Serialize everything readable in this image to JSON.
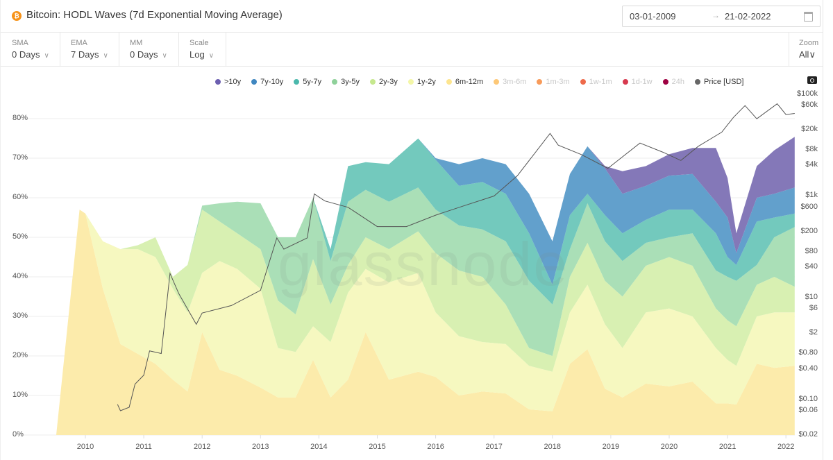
{
  "header": {
    "title": "Bitcoin: HODL Waves (7d Exponential Moving Average)",
    "coin_icon": "bitcoin-icon",
    "date_from": "03-01-2009",
    "date_arrow": "→",
    "date_to": "21-02-2022"
  },
  "controls": [
    {
      "label": "SMA",
      "value": "0 Days"
    },
    {
      "label": "EMA",
      "value": "7 Days"
    },
    {
      "label": "MM",
      "value": "0 Days"
    },
    {
      "label": "Scale",
      "value": "Log"
    }
  ],
  "zoom": {
    "label": "Zoom",
    "value": "All"
  },
  "watermark": "glassnode",
  "legend": [
    {
      "name": ">10y",
      "color": "#6c5fb0",
      "active": true
    },
    {
      "name": "7y-10y",
      "color": "#3f87c0",
      "active": true
    },
    {
      "name": "5y-7y",
      "color": "#4bb8ac",
      "active": true
    },
    {
      "name": "3y-5y",
      "color": "#8fd19a",
      "active": true
    },
    {
      "name": "2y-3y",
      "color": "#c6e88e",
      "active": true
    },
    {
      "name": "1y-2y",
      "color": "#f4f7a8",
      "active": true
    },
    {
      "name": "6m-12m",
      "color": "#fde58f",
      "active": true
    },
    {
      "name": "3m-6m",
      "color": "#fdc877",
      "active": false
    },
    {
      "name": "1m-3m",
      "color": "#f89b5a",
      "active": false
    },
    {
      "name": "1w-1m",
      "color": "#ee6a4a",
      "active": false
    },
    {
      "name": "1d-1w",
      "color": "#d7394e",
      "active": false
    },
    {
      "name": "24h",
      "color": "#9e0142",
      "active": false
    },
    {
      "name": "Price [USD]",
      "color": "#666666",
      "active": true
    }
  ],
  "chart_data": {
    "type": "area",
    "stacked": true,
    "x_unit": "year",
    "x": [
      2009.5,
      2009.9,
      2010.0,
      2010.3,
      2010.6,
      2010.9,
      2011.2,
      2011.5,
      2011.75,
      2012.0,
      2012.3,
      2012.6,
      2013.0,
      2013.3,
      2013.6,
      2013.9,
      2014.2,
      2014.5,
      2014.8,
      2015.2,
      2015.7,
      2016.0,
      2016.4,
      2016.8,
      2017.2,
      2017.6,
      2018.0,
      2018.3,
      2018.6,
      2018.9,
      2019.2,
      2019.6,
      2020.0,
      2020.4,
      2020.8,
      2021.0,
      2021.15,
      2021.5,
      2021.8,
      2022.15
    ],
    "series_order_bottom_to_top": [
      "6m-12m",
      "1y-2y",
      "2y-3y",
      "3y-5y",
      "5y-7y",
      "7y-10y",
      ">10y"
    ],
    "cumulative_percent": [
      [
        0
      ],
      [
        57
      ],
      [
        56
      ],
      [
        37,
        49
      ],
      [
        23,
        47
      ],
      [
        20.5,
        47,
        48
      ],
      [
        18,
        45,
        50
      ],
      [
        14,
        37,
        40
      ],
      [
        11,
        31,
        43
      ],
      [
        26,
        41,
        57,
        58
      ],
      [
        16.5,
        44,
        54,
        58.6
      ],
      [
        15,
        42,
        51,
        59
      ],
      [
        12,
        37,
        47,
        58.6
      ],
      [
        9.5,
        22,
        34,
        50
      ],
      [
        9.5,
        21,
        30.5,
        50
      ],
      [
        19,
        27.5,
        44.5,
        60
      ],
      [
        9.5,
        23.5,
        33,
        44,
        47
      ],
      [
        14,
        36,
        43,
        59,
        68
      ],
      [
        26,
        42,
        50,
        62,
        69
      ],
      [
        14,
        38.6,
        47,
        59,
        68.5
      ],
      [
        16,
        41,
        51.5,
        62.6,
        75
      ],
      [
        14.7,
        31,
        46,
        57,
        69.6,
        70
      ],
      [
        10,
        25,
        41.6,
        53,
        63,
        68.5
      ],
      [
        11,
        23.5,
        40,
        52,
        64,
        70
      ],
      [
        10.5,
        23,
        33,
        49,
        61,
        68.5
      ],
      [
        6.5,
        17.5,
        22,
        39,
        51,
        61
      ],
      [
        6,
        16,
        20,
        33,
        38,
        49
      ],
      [
        18,
        31,
        40,
        47,
        55.6,
        66
      ],
      [
        21.7,
        38,
        48.6,
        58.6,
        61,
        73
      ],
      [
        11.7,
        28,
        39,
        49,
        55.6,
        67.4,
        68
      ],
      [
        9.5,
        22,
        35,
        44,
        51,
        61,
        66.7
      ],
      [
        13,
        31,
        42.8,
        48.6,
        54.4,
        63,
        68
      ],
      [
        12.3,
        32,
        45,
        50,
        57,
        65.6,
        71
      ],
      [
        13.5,
        30,
        42.8,
        51,
        57,
        66,
        72.6
      ],
      [
        8,
        22,
        32,
        41.6,
        51,
        59,
        72.6
      ],
      [
        8,
        19,
        29,
        40,
        45,
        55,
        65
      ],
      [
        7.7,
        17.5,
        27.5,
        39,
        43,
        46,
        51
      ],
      [
        18,
        30,
        38,
        43,
        54,
        60,
        68
      ],
      [
        17,
        31,
        40,
        50,
        55,
        61,
        72
      ],
      [
        17.5,
        31,
        37.5,
        52.6,
        56,
        62.6,
        75.4
      ]
    ],
    "price_usd": [
      [
        2010.55,
        0.08
      ],
      [
        2010.6,
        0.06
      ],
      [
        2010.75,
        0.07
      ],
      [
        2010.85,
        0.2
      ],
      [
        2011.0,
        0.3
      ],
      [
        2011.1,
        0.9
      ],
      [
        2011.3,
        0.8
      ],
      [
        2011.45,
        30
      ],
      [
        2011.6,
        12
      ],
      [
        2011.9,
        3
      ],
      [
        2012.0,
        5
      ],
      [
        2012.5,
        7
      ],
      [
        2013.0,
        14
      ],
      [
        2013.28,
        150
      ],
      [
        2013.4,
        90
      ],
      [
        2013.8,
        150
      ],
      [
        2013.92,
        1100
      ],
      [
        2014.1,
        800
      ],
      [
        2014.5,
        600
      ],
      [
        2015.0,
        250
      ],
      [
        2015.5,
        250
      ],
      [
        2016.0,
        420
      ],
      [
        2016.5,
        650
      ],
      [
        2017.0,
        1000
      ],
      [
        2017.4,
        2500
      ],
      [
        2017.96,
        17000
      ],
      [
        2018.1,
        10000
      ],
      [
        2018.5,
        6500
      ],
      [
        2018.95,
        3500
      ],
      [
        2019.5,
        11000
      ],
      [
        2019.9,
        7200
      ],
      [
        2020.2,
        5000
      ],
      [
        2020.5,
        9500
      ],
      [
        2020.9,
        18000
      ],
      [
        2021.1,
        35000
      ],
      [
        2021.3,
        60000
      ],
      [
        2021.5,
        33000
      ],
      [
        2021.85,
        65000
      ],
      [
        2022.0,
        40000
      ],
      [
        2022.15,
        42000
      ]
    ],
    "y_left": {
      "range": [
        0,
        80
      ],
      "ticks": [
        "0%",
        "10%",
        "20%",
        "30%",
        "40%",
        "50%",
        "60%",
        "70%",
        "80%"
      ]
    },
    "y_right": {
      "scale": "log",
      "ticks": [
        {
          "label": "$100k",
          "value": 100000
        },
        {
          "label": "$60k",
          "value": 60000
        },
        {
          "label": "$20k",
          "value": 20000
        },
        {
          "label": "$8k",
          "value": 8000
        },
        {
          "label": "$4k",
          "value": 4000
        },
        {
          "label": "$1k",
          "value": 1000
        },
        {
          "label": "$600",
          "value": 600
        },
        {
          "label": "$200",
          "value": 200
        },
        {
          "label": "$80",
          "value": 80
        },
        {
          "label": "$40",
          "value": 40
        },
        {
          "label": "$10",
          "value": 10
        },
        {
          "label": "$6",
          "value": 6
        },
        {
          "label": "$2",
          "value": 2
        },
        {
          "label": "$0.80",
          "value": 0.8
        },
        {
          "label": "$0.40",
          "value": 0.4
        },
        {
          "label": "$0.10",
          "value": 0.1
        },
        {
          "label": "$0.06",
          "value": 0.06
        },
        {
          "label": "$0.02",
          "value": 0.02
        }
      ]
    },
    "x_ticks": [
      "2010",
      "2011",
      "2012",
      "2013",
      "2014",
      "2015",
      "2016",
      "2017",
      "2018",
      "2019",
      "2020",
      "2021",
      "2022"
    ],
    "grid": true
  }
}
